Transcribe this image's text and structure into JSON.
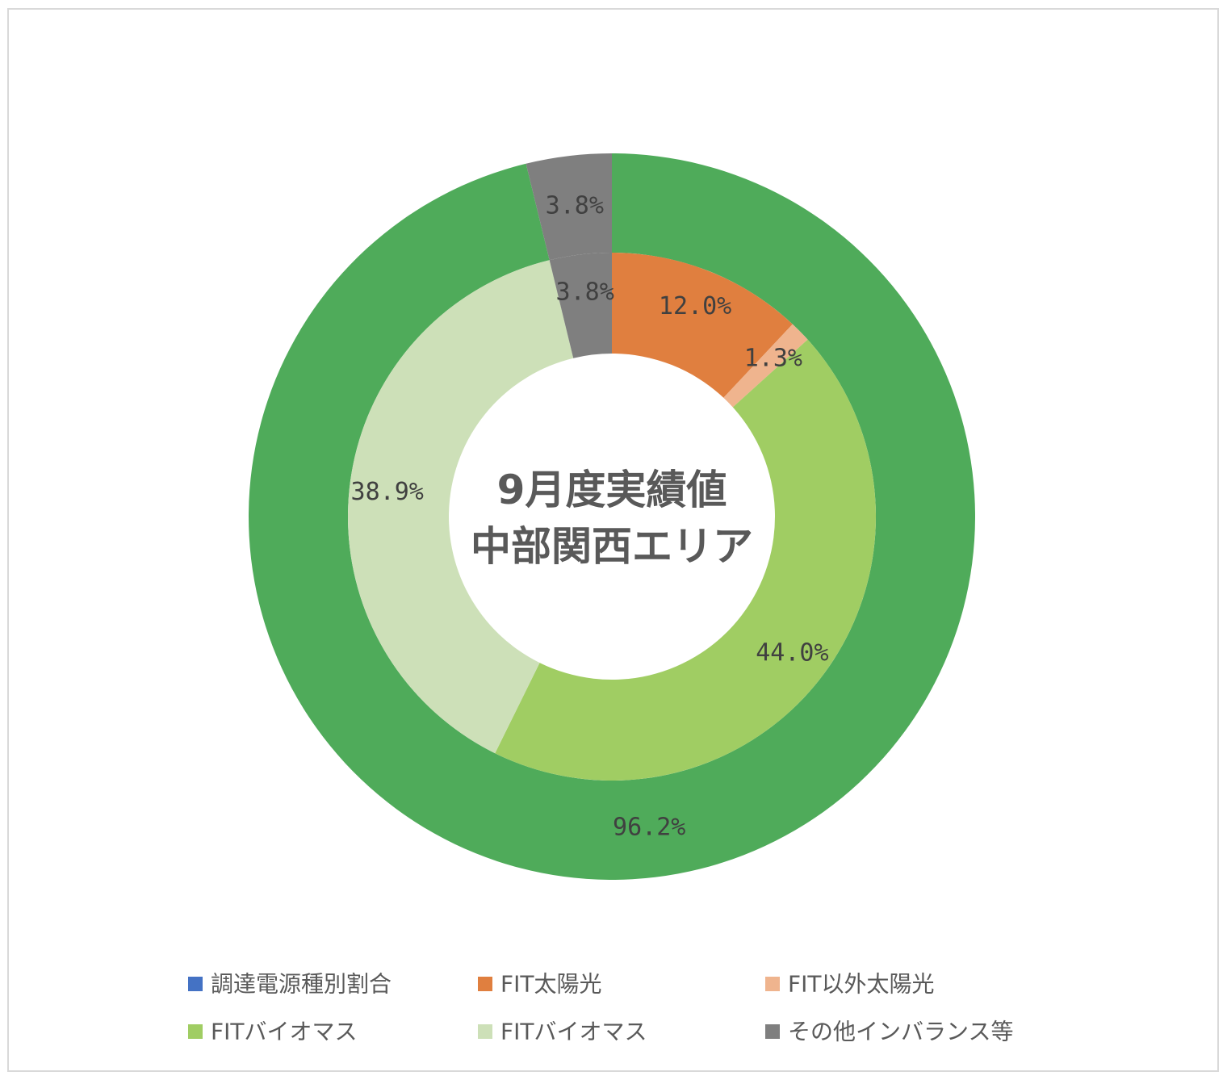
{
  "chart_data": {
    "type": "donut",
    "title_lines": [
      "9月度実績値",
      "中部関西エリア"
    ],
    "legend_position": "bottom",
    "legend": [
      {
        "label": "調達電源種別割合",
        "color": "#4472c4"
      },
      {
        "label": "FIT太陽光",
        "color": "#e07f3f"
      },
      {
        "label": "FIT以外太陽光",
        "color": "#efb48e"
      },
      {
        "label": "FITバイオマス",
        "color": "#a0cd63"
      },
      {
        "label": "FITバイオマス",
        "color": "#cde0b8"
      },
      {
        "label": "その他インバランス等",
        "color": "#7f7f7f"
      }
    ],
    "rings": [
      {
        "ring": "outer",
        "slices": [
          {
            "value": 96.2,
            "label": "96.2%",
            "color": "#4fab5a"
          },
          {
            "value": 3.8,
            "label": "3.8%",
            "color": "#7f7f7f"
          }
        ]
      },
      {
        "ring": "inner",
        "slices": [
          {
            "value": 12.0,
            "label": "12.0%",
            "color": "#e07f3f"
          },
          {
            "value": 1.3,
            "label": "1.3%",
            "color": "#efb48e"
          },
          {
            "value": 44.0,
            "label": "44.0%",
            "color": "#a0cd63"
          },
          {
            "value": 38.9,
            "label": "38.9%",
            "color": "#cde0b8"
          },
          {
            "value": 3.8,
            "label": "3.8%",
            "color": "#7f7f7f"
          }
        ]
      }
    ]
  }
}
